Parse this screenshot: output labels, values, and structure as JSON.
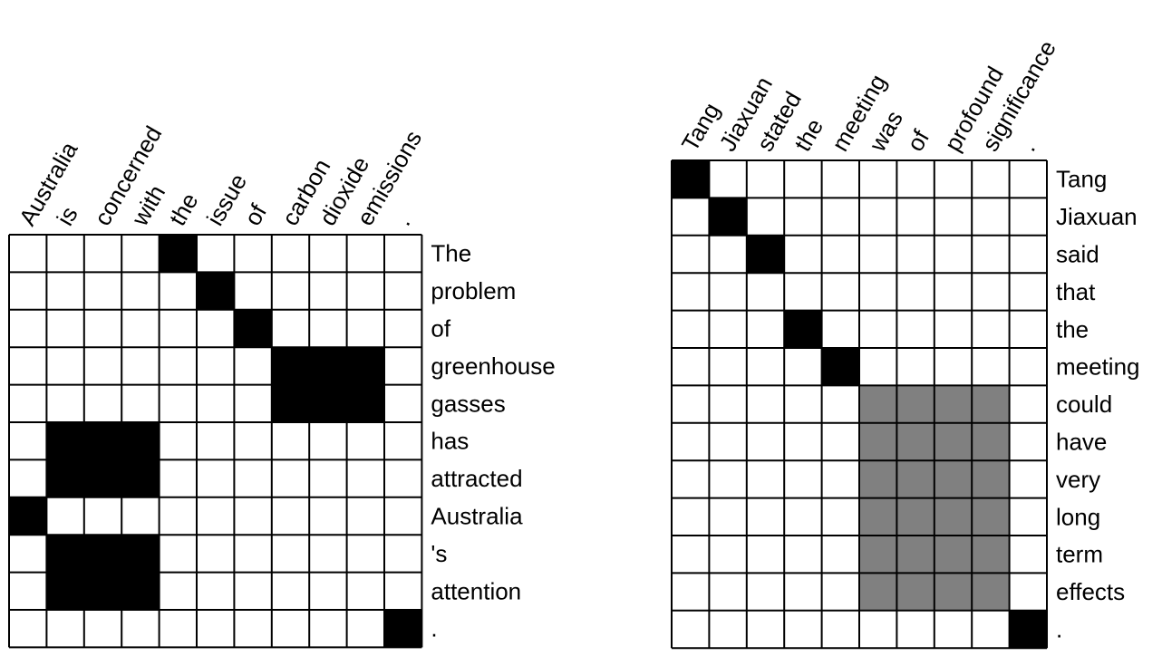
{
  "colors": {
    "filled": "#000000",
    "partial": "#808080",
    "empty": "#ffffff",
    "border": "#000000"
  },
  "matrices": [
    {
      "name": "left",
      "columns": [
        "Australia",
        "is",
        "concerned",
        "with",
        "the",
        "issue",
        "of",
        "carbon",
        "dioxide",
        "emissions",
        "."
      ],
      "rows": [
        "The",
        "problem",
        "of",
        "greenhouse",
        "gasses",
        "has",
        "attracted",
        "Australia",
        "'s",
        "attention",
        "."
      ],
      "cells": [
        [
          0,
          0,
          0,
          0,
          1,
          0,
          0,
          0,
          0,
          0,
          0
        ],
        [
          0,
          0,
          0,
          0,
          0,
          1,
          0,
          0,
          0,
          0,
          0
        ],
        [
          0,
          0,
          0,
          0,
          0,
          0,
          1,
          0,
          0,
          0,
          0
        ],
        [
          0,
          0,
          0,
          0,
          0,
          0,
          0,
          1,
          1,
          1,
          0
        ],
        [
          0,
          0,
          0,
          0,
          0,
          0,
          0,
          1,
          1,
          1,
          0
        ],
        [
          0,
          1,
          1,
          1,
          0,
          0,
          0,
          0,
          0,
          0,
          0
        ],
        [
          0,
          1,
          1,
          1,
          0,
          0,
          0,
          0,
          0,
          0,
          0
        ],
        [
          1,
          0,
          0,
          0,
          0,
          0,
          0,
          0,
          0,
          0,
          0
        ],
        [
          0,
          1,
          1,
          1,
          0,
          0,
          0,
          0,
          0,
          0,
          0
        ],
        [
          0,
          1,
          1,
          1,
          0,
          0,
          0,
          0,
          0,
          0,
          0
        ],
        [
          0,
          0,
          0,
          0,
          0,
          0,
          0,
          0,
          0,
          0,
          1
        ]
      ]
    },
    {
      "name": "right",
      "columns": [
        "Tang",
        "Jiaxuan",
        "stated",
        "the",
        "meeting",
        "was",
        "of",
        "profound",
        "significance",
        "."
      ],
      "rows": [
        "Tang",
        "Jiaxuan",
        "said",
        "that",
        "the",
        "meeting",
        "could",
        "have",
        "very",
        "long",
        "term",
        "effects",
        "."
      ],
      "cells": [
        [
          1,
          0,
          0,
          0,
          0,
          0,
          0,
          0,
          0,
          0
        ],
        [
          0,
          1,
          0,
          0,
          0,
          0,
          0,
          0,
          0,
          0
        ],
        [
          0,
          0,
          1,
          0,
          0,
          0,
          0,
          0,
          0,
          0
        ],
        [
          0,
          0,
          0,
          0,
          0,
          0,
          0,
          0,
          0,
          0
        ],
        [
          0,
          0,
          0,
          1,
          0,
          0,
          0,
          0,
          0,
          0
        ],
        [
          0,
          0,
          0,
          0,
          1,
          0,
          0,
          0,
          0,
          0
        ],
        [
          0,
          0,
          0,
          0,
          0,
          2,
          2,
          2,
          2,
          0
        ],
        [
          0,
          0,
          0,
          0,
          0,
          2,
          2,
          2,
          2,
          0
        ],
        [
          0,
          0,
          0,
          0,
          0,
          2,
          2,
          2,
          2,
          0
        ],
        [
          0,
          0,
          0,
          0,
          0,
          2,
          2,
          2,
          2,
          0
        ],
        [
          0,
          0,
          0,
          0,
          0,
          2,
          2,
          2,
          2,
          0
        ],
        [
          0,
          0,
          0,
          0,
          0,
          2,
          2,
          2,
          2,
          0
        ],
        [
          0,
          0,
          0,
          0,
          0,
          0,
          0,
          0,
          0,
          1
        ]
      ]
    }
  ]
}
